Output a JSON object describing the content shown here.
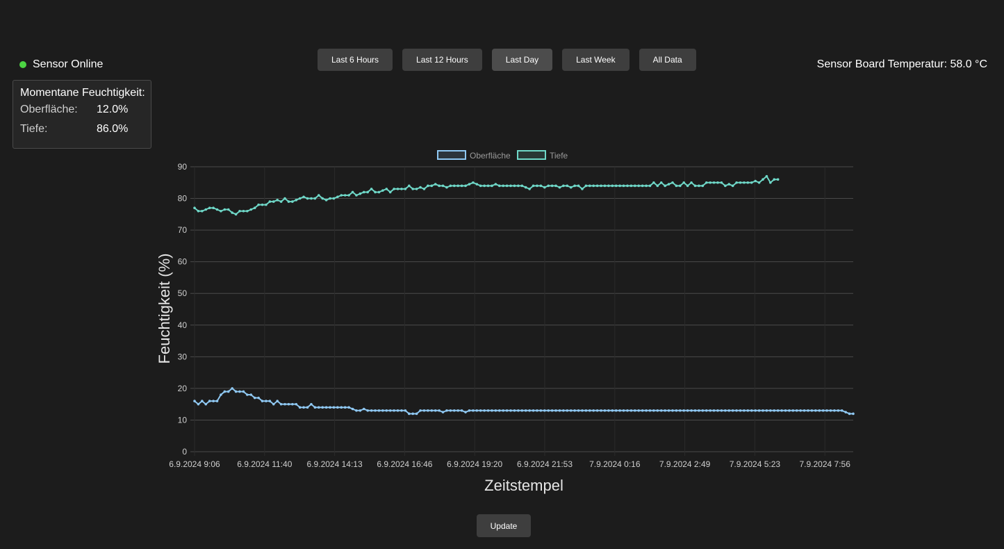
{
  "status": {
    "label": "Sensor Online",
    "color": "#4cd443"
  },
  "card": {
    "title": "Momentane Feuchtigkeit:",
    "rows": [
      {
        "label": "Oberfläche:",
        "value": "12.0%"
      },
      {
        "label": "Tiefe:",
        "value": "86.0%"
      }
    ]
  },
  "range_buttons": [
    {
      "label": "Last 6 Hours"
    },
    {
      "label": "Last 12 Hours"
    },
    {
      "label": "Last Day"
    },
    {
      "label": "Last Week"
    },
    {
      "label": "All Data"
    }
  ],
  "active_range": "Last Day",
  "board_temp": "Sensor Board Temperatur: 58.0 °C",
  "update_label": "Update",
  "chart_data": {
    "type": "line",
    "xlabel": "Zeitstempel",
    "ylabel": "Feuchtigkeit (%)",
    "ylim": [
      0,
      90
    ],
    "yticks": [
      0,
      10,
      20,
      30,
      40,
      50,
      60,
      70,
      80,
      90
    ],
    "xticks": [
      "6.9.2024 9:06",
      "6.9.2024 11:40",
      "6.9.2024 14:13",
      "6.9.2024 16:46",
      "6.9.2024 19:20",
      "6.9.2024 21:53",
      "7.9.2024 0:16",
      "7.9.2024 2:49",
      "7.9.2024 5:23",
      "7.9.2024 7:56"
    ],
    "grid": true,
    "legend_position": "top",
    "series": [
      {
        "name": "Oberfläche",
        "color": "#8fc8f2",
        "values": [
          16,
          15,
          16,
          15,
          16,
          16,
          16,
          18,
          19,
          19,
          20,
          19,
          19,
          19,
          18,
          18,
          17,
          17,
          16,
          16,
          16,
          15,
          16,
          15,
          15,
          15,
          15,
          15,
          14,
          14,
          14,
          15,
          14,
          14,
          14,
          14,
          14,
          14,
          14,
          14,
          14,
          14,
          13.5,
          13,
          13,
          13.5,
          13,
          13,
          13,
          13,
          13,
          13,
          13,
          13,
          13,
          13,
          13,
          12,
          12,
          12,
          13,
          13,
          13,
          13,
          13,
          13,
          12.5,
          13,
          13,
          13,
          13,
          13,
          12.5,
          13,
          13,
          13,
          13,
          13,
          13,
          13,
          13,
          13,
          13,
          13,
          13,
          13,
          13,
          13,
          13,
          13,
          13,
          13,
          13,
          13,
          13,
          13,
          13,
          13,
          13,
          13,
          13,
          13,
          13,
          13,
          13,
          13,
          13,
          13,
          13,
          13,
          13,
          13,
          13,
          13,
          13,
          13,
          13,
          13,
          13,
          13,
          13,
          13,
          13,
          13,
          13,
          13,
          13,
          13,
          13,
          13,
          13,
          13,
          13,
          13,
          13,
          13,
          13,
          13,
          13,
          13,
          13,
          13,
          13,
          13,
          13,
          13,
          13,
          13,
          13,
          13,
          13,
          13,
          13,
          13,
          13,
          13,
          13,
          13,
          13,
          13,
          13,
          13,
          13,
          13,
          13,
          13,
          13,
          13,
          13,
          13,
          13,
          13,
          13,
          12.5,
          12,
          12
        ]
      },
      {
        "name": "Tiefe",
        "color": "#6fd8c8",
        "values": [
          77,
          76,
          76,
          76.5,
          77,
          77,
          76.5,
          76,
          76.5,
          76.5,
          75.5,
          75,
          76,
          76,
          76,
          76.5,
          77,
          78,
          78,
          78,
          79,
          79,
          79.5,
          79,
          80,
          79,
          79,
          79.5,
          80,
          80.5,
          80,
          80,
          80,
          81,
          80,
          79.5,
          80,
          80,
          80.5,
          81,
          81,
          81,
          82,
          81,
          81.5,
          82,
          82,
          83,
          82,
          82,
          82.5,
          83,
          82,
          83,
          83,
          83,
          83,
          84,
          83,
          83,
          83.5,
          83,
          84,
          84,
          84.5,
          84,
          84,
          83.5,
          84,
          84,
          84,
          84,
          84,
          84.5,
          85,
          84.5,
          84,
          84,
          84,
          84,
          84.5,
          84,
          84,
          84,
          84,
          84,
          84,
          84,
          83.5,
          83,
          84,
          84,
          84,
          83.5,
          84,
          84,
          84,
          83.5,
          84,
          84,
          83.5,
          84,
          84,
          83,
          84,
          84,
          84,
          84,
          84,
          84,
          84,
          84,
          84,
          84,
          84,
          84,
          84,
          84,
          84,
          84,
          84,
          84,
          85,
          84,
          85,
          84,
          84.5,
          85,
          84,
          84,
          85,
          84,
          85,
          84,
          84,
          84,
          85,
          85,
          85,
          85,
          85,
          84,
          84.5,
          84,
          85,
          85,
          85,
          85,
          85,
          85.5,
          85,
          86,
          87,
          85,
          86,
          86
        ]
      }
    ]
  }
}
